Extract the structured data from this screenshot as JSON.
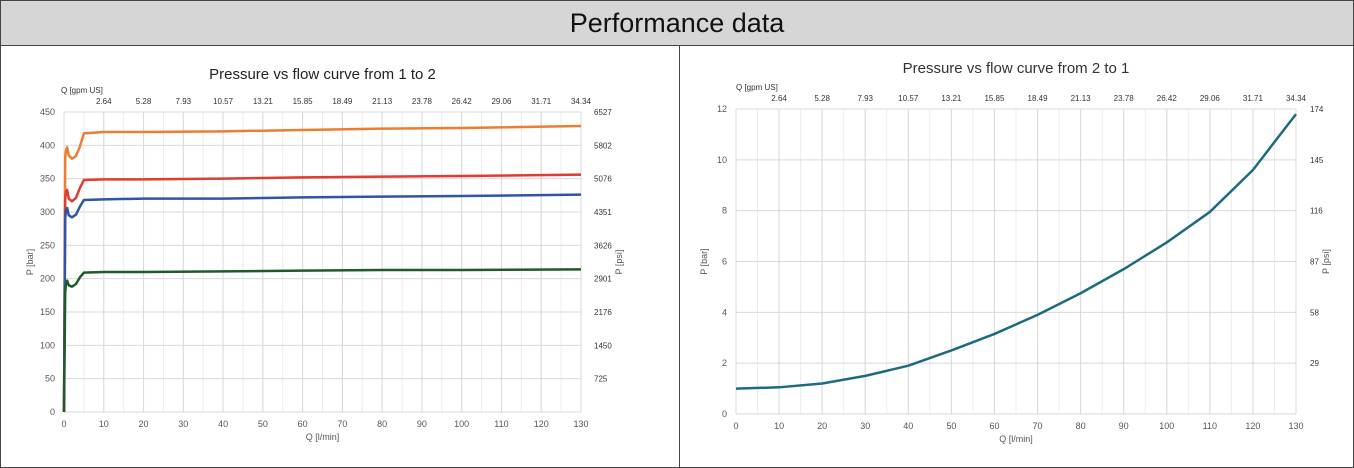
{
  "header": {
    "title": "Performance data"
  },
  "chart_data": [
    {
      "type": "line",
      "title": "Pressure vs flow curve from 1 to 2",
      "xlabel": "Q [l/min]",
      "ylabel": "P [bar]",
      "ylabel_right": "P [psi]",
      "xlabel_top": "Q [gpm US]",
      "xlim": [
        0,
        130
      ],
      "ylim": [
        0,
        450
      ],
      "x_ticks": [
        "0",
        "10",
        "20",
        "30",
        "40",
        "50",
        "60",
        "70",
        "80",
        "90",
        "100",
        "110",
        "120",
        "130"
      ],
      "y_ticks": [
        "0",
        "50",
        "100",
        "150",
        "200",
        "250",
        "300",
        "350",
        "400",
        "450"
      ],
      "top_ticks": [
        "2.64",
        "5.28",
        "7.93",
        "10.57",
        "13.21",
        "15.85",
        "18.49",
        "21.13",
        "23.78",
        "26.42",
        "29.06",
        "31.71",
        "34.34"
      ],
      "right_ticks": [
        "725",
        "1450",
        "2176",
        "2901",
        "3626",
        "4351",
        "5076",
        "5802",
        "6527"
      ],
      "grid": true,
      "series": [
        {
          "color": "#ed7d31",
          "x": [
            0,
            0.3,
            0.5,
            0.8,
            1.2,
            2,
            3,
            4,
            5,
            10,
            20,
            40,
            60,
            80,
            100,
            130
          ],
          "y": [
            0,
            380,
            393,
            397,
            385,
            380,
            384,
            398,
            418,
            420,
            420,
            421,
            423,
            425,
            426,
            429
          ]
        },
        {
          "color": "#e03c31",
          "x": [
            0,
            0.3,
            0.5,
            0.8,
            1.2,
            2,
            3,
            4,
            5,
            10,
            20,
            40,
            60,
            80,
            100,
            130
          ],
          "y": [
            0,
            320,
            330,
            333,
            320,
            316,
            321,
            336,
            348,
            349,
            349,
            350,
            352,
            353,
            354,
            356
          ]
        },
        {
          "color": "#2f55a4",
          "x": [
            0,
            0.3,
            0.5,
            0.8,
            1.2,
            2,
            3,
            4,
            5,
            10,
            20,
            40,
            60,
            80,
            100,
            130
          ],
          "y": [
            0,
            290,
            302,
            306,
            295,
            292,
            296,
            308,
            318,
            319,
            320,
            320,
            322,
            323,
            324,
            326
          ]
        },
        {
          "color": "#1f5a2b",
          "x": [
            0,
            0.3,
            0.5,
            0.8,
            1.2,
            2,
            3,
            4,
            5,
            10,
            20,
            40,
            60,
            80,
            100,
            130
          ],
          "y": [
            0,
            180,
            192,
            197,
            190,
            188,
            192,
            202,
            209,
            210,
            210,
            211,
            212,
            213,
            213,
            214
          ]
        }
      ]
    },
    {
      "type": "line",
      "title": "Pressure vs flow curve from 2 to 1",
      "xlabel": "Q [l/min]",
      "ylabel": "P [bar]",
      "ylabel_right": "P [psi]",
      "xlabel_top": "Q [gpm US]",
      "xlim": [
        0,
        130
      ],
      "ylim": [
        0,
        12
      ],
      "x_ticks": [
        "0",
        "10",
        "20",
        "30",
        "40",
        "50",
        "60",
        "70",
        "80",
        "90",
        "100",
        "110",
        "120",
        "130"
      ],
      "y_ticks": [
        "0",
        "2",
        "4",
        "6",
        "8",
        "10",
        "12"
      ],
      "top_ticks": [
        "2.64",
        "5.28",
        "7.93",
        "10.57",
        "13.21",
        "15.85",
        "18.49",
        "21.13",
        "23.78",
        "26.42",
        "29.06",
        "31.71",
        "34.34"
      ],
      "right_ticks": [
        "29",
        "58",
        "87",
        "116",
        "145",
        "174"
      ],
      "grid": true,
      "series": [
        {
          "color": "#1e6b80",
          "x": [
            0,
            10,
            20,
            30,
            40,
            50,
            60,
            70,
            80,
            90,
            100,
            110,
            120,
            130
          ],
          "y": [
            1.0,
            1.05,
            1.2,
            1.5,
            1.9,
            2.5,
            3.15,
            3.9,
            4.75,
            5.7,
            6.75,
            7.95,
            9.6,
            11.8
          ]
        }
      ]
    }
  ]
}
